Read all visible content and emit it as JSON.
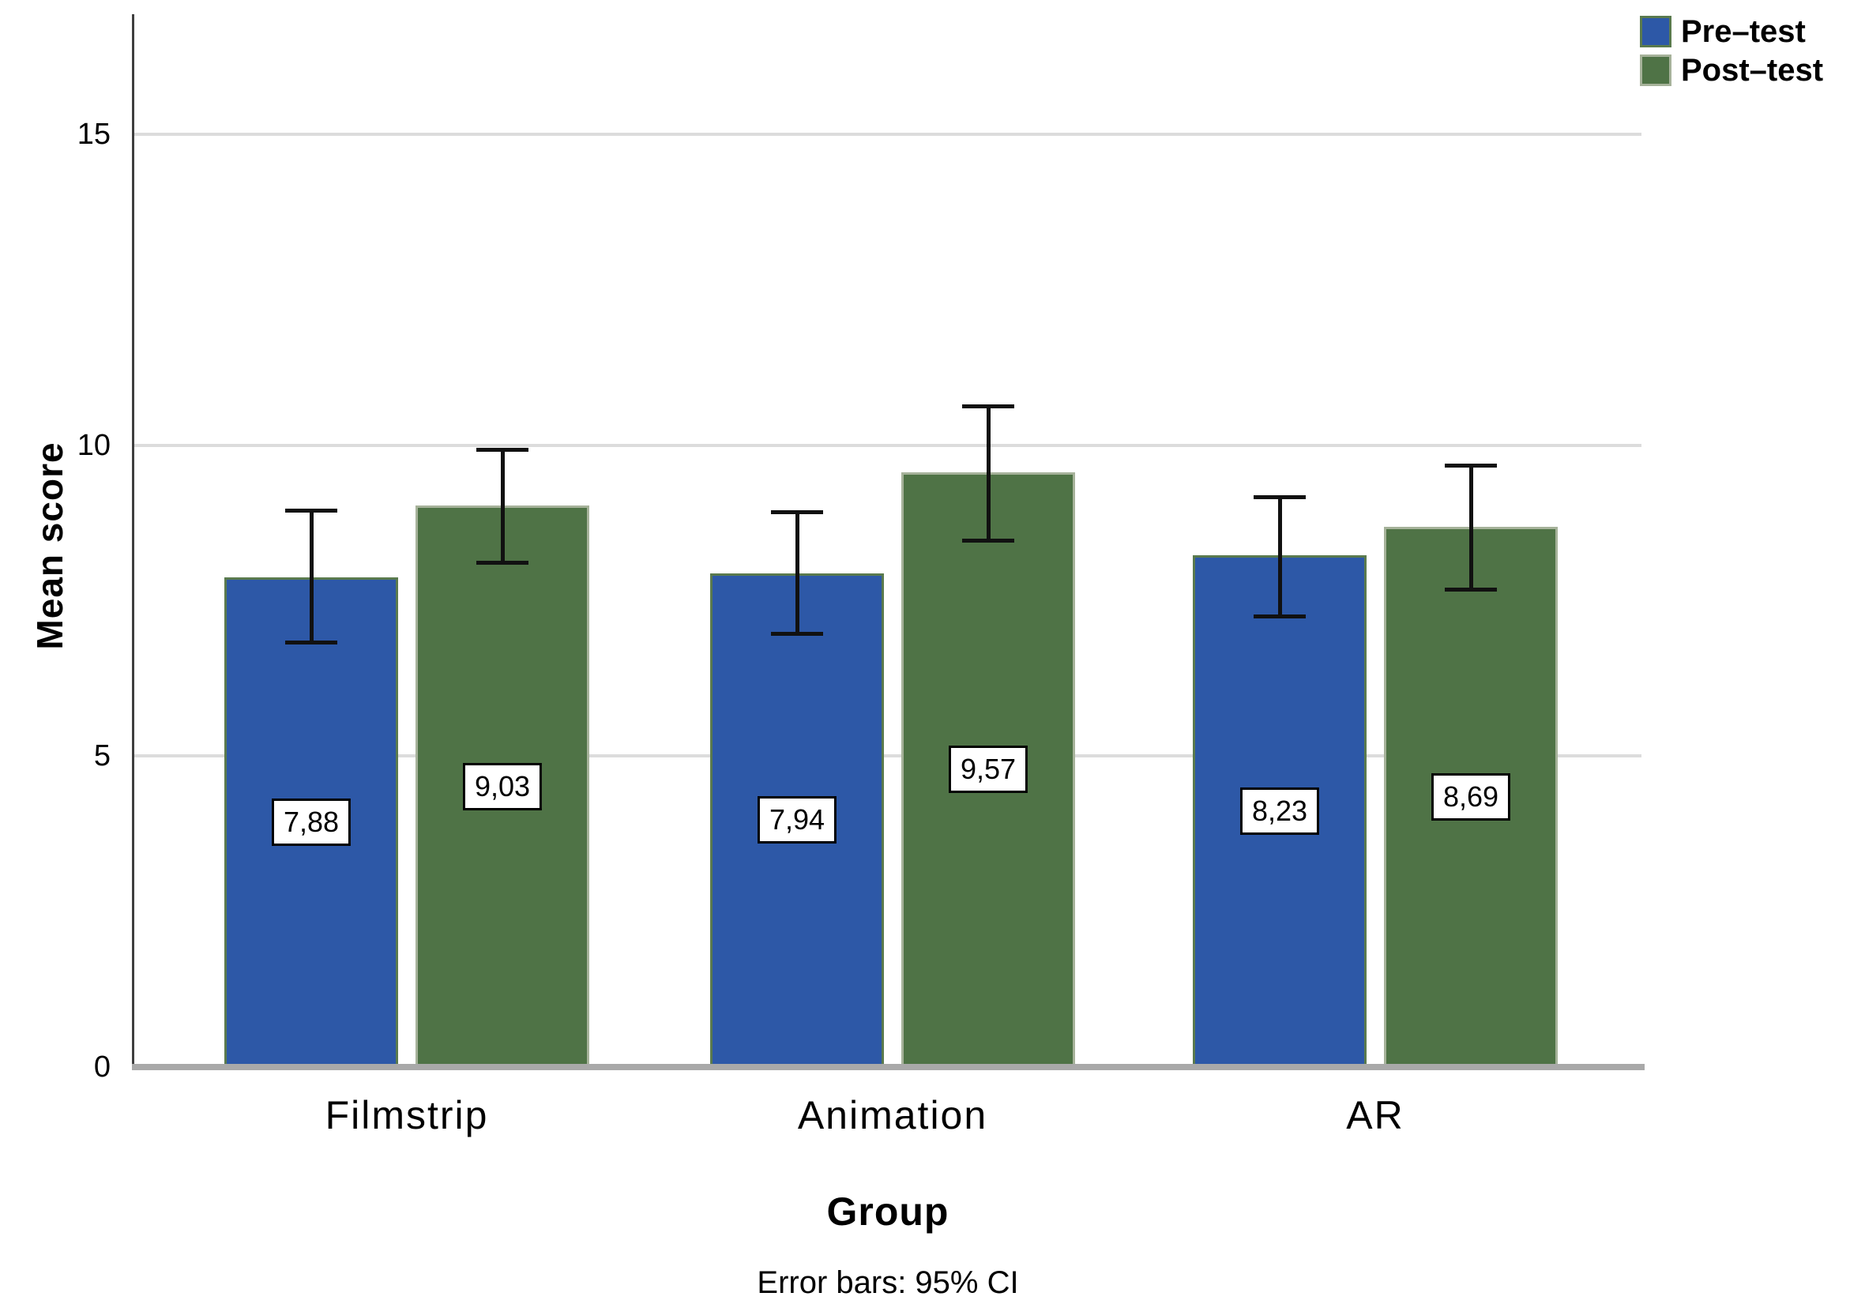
{
  "chart_data": {
    "type": "bar",
    "title": "",
    "xlabel": "Group",
    "ylabel": "Mean score",
    "caption": "Error bars: 95% CI",
    "categories": [
      "Filmstrip",
      "Animation",
      "AR"
    ],
    "series": [
      {
        "name": "Pre–test",
        "color": "#2d58a7",
        "border_color": "#5a7a4e",
        "values": [
          7.88,
          7.94,
          8.23
        ],
        "value_labels": [
          "7,88",
          "7,94",
          "8,23"
        ],
        "ci_low": [
          6.8,
          6.93,
          7.22
        ],
        "ci_high": [
          8.98,
          8.95,
          9.19
        ]
      },
      {
        "name": "Post–test",
        "color": "#4f7346",
        "border_color": "#a6b29a",
        "values": [
          9.03,
          9.57,
          8.69
        ],
        "value_labels": [
          "9,03",
          "9,57",
          "8,69"
        ],
        "ci_low": [
          8.08,
          8.43,
          7.65
        ],
        "ci_high": [
          9.96,
          10.66,
          9.7
        ]
      }
    ],
    "ylim": [
      0,
      16.9
    ],
    "yticks": [
      0,
      5,
      10,
      15
    ],
    "ytick_labels": [
      "0",
      "5",
      "10",
      "15"
    ],
    "grid": true,
    "legend_position": "top-right",
    "error_bars": "95% CI",
    "decimal_separator": ",",
    "colors": {
      "gridline": "#dcdcdc",
      "y_axis_line": "#3f3f3f",
      "x_axis_line": "#a9a9a9",
      "error_bar": "#111111",
      "value_label_bg": "#ffffff",
      "value_label_border": "#000000"
    }
  }
}
